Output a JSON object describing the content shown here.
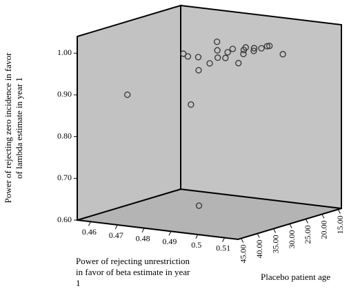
{
  "chart_data": {
    "type": "scatter3d",
    "x_label": "Power of rejecting unrestriction in favor of beta estimate in year 1",
    "y_label": "Placebo patient age",
    "z_label": "Power of rejecting zero incidence in favor of lambda estimate in year 1",
    "color": "#333333",
    "x": [
      0.466,
      0.485,
      0.483,
      0.477,
      0.477,
      0.482,
      0.481,
      0.484,
      0.488,
      0.492,
      0.489,
      0.491,
      0.488,
      0.486,
      0.492,
      0.49,
      0.494,
      0.487,
      0.494,
      0.49,
      0.489,
      0.495,
      0.492,
      0.497
    ],
    "y": [
      39.6,
      33.2,
      36.4,
      30.0,
      26.8,
      33.2,
      30.0,
      26.8,
      30.0,
      33.2,
      33.2,
      30.0,
      26.8,
      23.6,
      26.8,
      23.6,
      26.8,
      20.4,
      23.6,
      20.4,
      17.2,
      20.4,
      17.2,
      17.2
    ],
    "z": [
      0.894,
      0.628,
      0.998,
      0.972,
      0.963,
      0.868,
      0.942,
      1.005,
      0.995,
      0.988,
      0.972,
      0.979,
      0.983,
      0.982,
      0.96,
      0.973,
      0.993,
      0.979,
      0.99,
      0.973,
      0.971,
      0.988,
      0.979,
      0.963
    ],
    "xlim": [
      0.455,
      0.515
    ],
    "xticks": [
      0.46,
      0.47,
      0.48,
      0.49,
      0.5,
      0.51
    ],
    "ylim": [
      46,
      14
    ],
    "yticks": [
      {
        "value": 45,
        "label": "45.00"
      },
      {
        "value": 40,
        "label": "40.00"
      },
      {
        "value": 35,
        "label": "35.00"
      },
      {
        "value": 30,
        "label": "30.00"
      },
      {
        "value": 25,
        "label": "25.00"
      },
      {
        "value": 20,
        "label": "20.00"
      },
      {
        "value": 15,
        "label": "15.00"
      }
    ],
    "zlim": [
      0.6,
      1.04
    ],
    "zticks": [
      {
        "value": 0.6,
        "label": "0.60"
      },
      {
        "value": 0.7,
        "label": "0.70"
      },
      {
        "value": 0.8,
        "label": "0.80"
      },
      {
        "value": 0.9,
        "label": "0.90"
      },
      {
        "value": 1.0,
        "label": "1.00"
      }
    ]
  }
}
